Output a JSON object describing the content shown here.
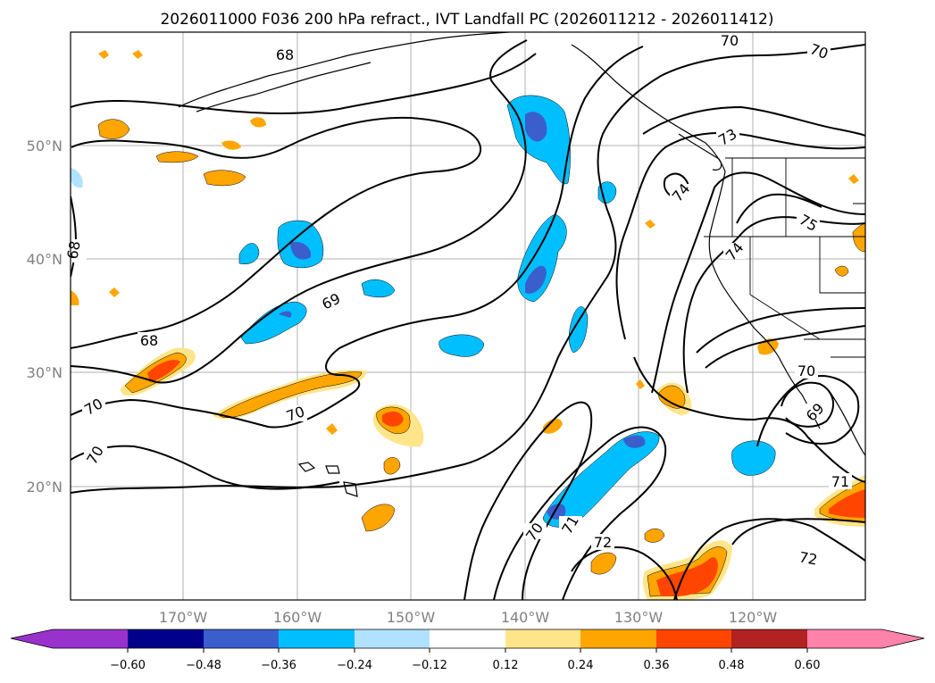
{
  "title": "2026011000 F036 200 hPa refract., IVT Landfall PC (2026011212 - 2026011412)",
  "map": {
    "lat_ticks": [
      "50°N",
      "40°N",
      "30°N",
      "20°N"
    ],
    "lon_ticks": [
      "170°W",
      "160°W",
      "150°W",
      "140°W",
      "130°W",
      "120°W"
    ],
    "contour_labels": [
      "68",
      "68",
      "68",
      "69",
      "69",
      "70",
      "70",
      "70",
      "70",
      "70",
      "70",
      "70",
      "71",
      "71",
      "72",
      "72",
      "73",
      "74",
      "74",
      "75"
    ]
  },
  "colorbar": {
    "ticks": [
      "−0.60",
      "−0.48",
      "−0.36",
      "−0.24",
      "−0.12",
      "0.12",
      "0.24",
      "0.36",
      "0.48",
      "0.60"
    ],
    "colors": [
      "#9932cc",
      "#00008b",
      "#3a5fcd",
      "#00bfff",
      "#b0e2ff",
      "#ffffff",
      "#ffe58a",
      "#ffa500",
      "#ff4500",
      "#b22222",
      "#ff82ab"
    ]
  }
}
